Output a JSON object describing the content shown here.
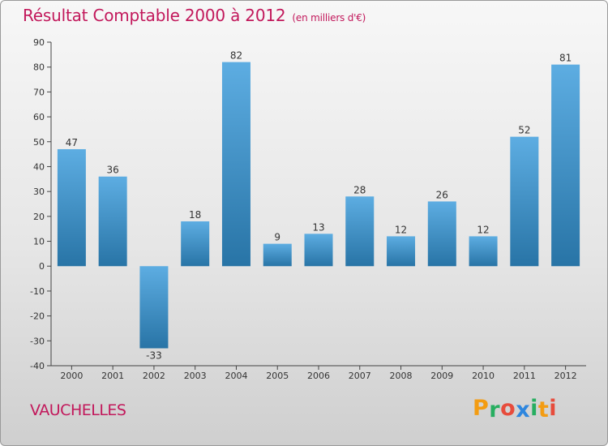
{
  "title": "Résultat Comptable 2000 à 2012",
  "subtitle": "(en milliers d'€)",
  "commune": "VAUCHELLES",
  "brand": {
    "letters": [
      "P",
      "r",
      "o",
      "x",
      "i",
      "t",
      "i"
    ],
    "colors": [
      "#f39c12",
      "#27ae60",
      "#e74c3c",
      "#2e86de",
      "#27ae60",
      "#f39c12",
      "#e74c3c"
    ]
  },
  "colors": {
    "bar_light": "#5dade2",
    "bar_dark": "#2874a6",
    "title": "#c2185b"
  },
  "chart_data": {
    "type": "bar",
    "categories": [
      "2000",
      "2001",
      "2002",
      "2003",
      "2004",
      "2005",
      "2006",
      "2007",
      "2008",
      "2009",
      "2010",
      "2011",
      "2012"
    ],
    "values": [
      47,
      36,
      -33,
      18,
      82,
      9,
      13,
      28,
      12,
      26,
      12,
      52,
      81
    ],
    "ylim": [
      -40,
      90
    ],
    "yticks": [
      90,
      80,
      70,
      60,
      50,
      40,
      30,
      20,
      10,
      0,
      -10,
      -20,
      -30,
      -40
    ],
    "grid": false,
    "xlabel": "",
    "ylabel": ""
  }
}
